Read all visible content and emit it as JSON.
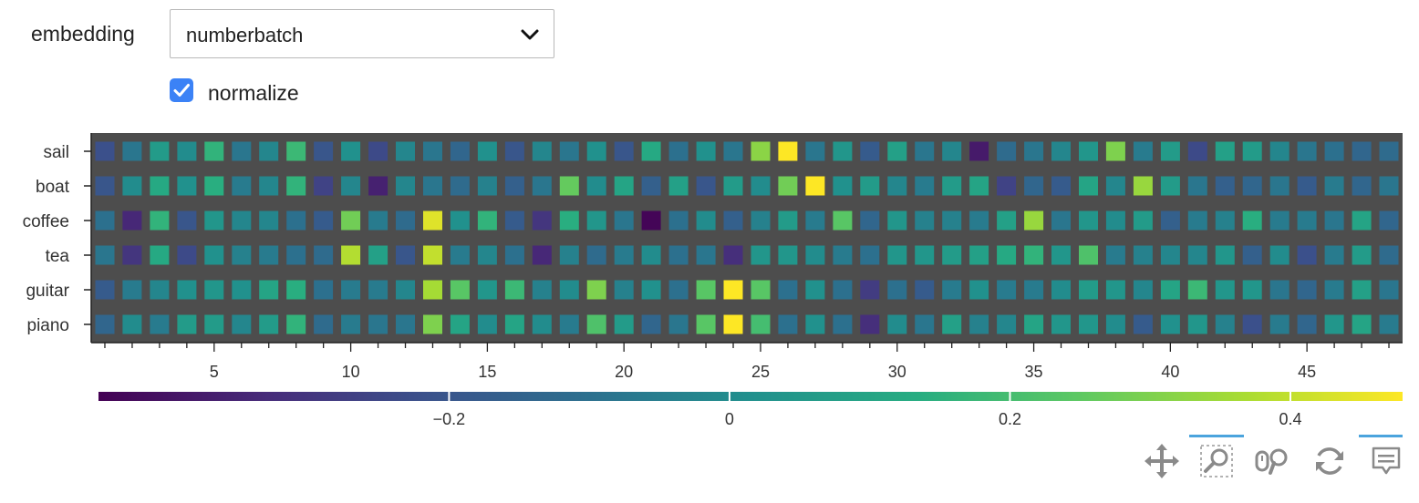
{
  "controls": {
    "embedding_label": "embedding",
    "embedding_value": "numberbatch",
    "normalize_label": "normalize",
    "normalize_checked": true
  },
  "toolbar": {
    "tools": [
      "pan-icon",
      "box-zoom-icon",
      "wheel-zoom-icon",
      "reset-icon",
      "hover-icon"
    ],
    "active": [
      "box-zoom-icon",
      "hover-icon"
    ]
  },
  "chart_data": {
    "type": "heatmap",
    "title": "",
    "xlabel": "",
    "ylabel": "",
    "rows": [
      "sail",
      "boat",
      "coffee",
      "tea",
      "guitar",
      "piano"
    ],
    "x": [
      1,
      2,
      3,
      4,
      5,
      6,
      7,
      8,
      9,
      10,
      11,
      12,
      13,
      14,
      15,
      16,
      17,
      18,
      19,
      20,
      21,
      22,
      23,
      24,
      25,
      26,
      27,
      28,
      29,
      30,
      31,
      32,
      33,
      34,
      35,
      36,
      37,
      38,
      39,
      40,
      41,
      42,
      43,
      44,
      45,
      46,
      47,
      48
    ],
    "xlim": [
      0.5,
      48.5
    ],
    "x_ticks": [
      5,
      10,
      15,
      20,
      25,
      30,
      35,
      40,
      45
    ],
    "values": [
      [
        -0.22,
        -0.08,
        0.06,
        0.0,
        0.16,
        -0.08,
        -0.02,
        0.18,
        -0.2,
        0.02,
        -0.24,
        -0.02,
        -0.08,
        -0.14,
        0.02,
        -0.2,
        -0.02,
        -0.08,
        0.02,
        -0.2,
        0.12,
        -0.1,
        0.02,
        -0.08,
        0.32,
        0.5,
        -0.08,
        0.04,
        -0.18,
        0.08,
        -0.08,
        -0.02,
        -0.38,
        -0.12,
        -0.08,
        -0.02,
        0.04,
        0.3,
        -0.06,
        0.06,
        -0.24,
        0.08,
        0.06,
        -0.02,
        -0.08,
        -0.1,
        -0.14,
        -0.12
      ],
      [
        -0.2,
        0.0,
        0.12,
        0.02,
        0.14,
        -0.06,
        -0.02,
        0.16,
        -0.26,
        -0.02,
        -0.36,
        -0.02,
        -0.08,
        -0.12,
        -0.04,
        -0.16,
        -0.08,
        0.26,
        0.0,
        0.1,
        -0.16,
        0.08,
        -0.2,
        0.06,
        0.0,
        0.28,
        0.48,
        0.02,
        0.06,
        -0.02,
        -0.06,
        0.06,
        0.1,
        -0.26,
        -0.14,
        -0.18,
        0.1,
        -0.02,
        0.34,
        0.06,
        -0.08,
        -0.16,
        -0.14,
        -0.08,
        -0.18,
        -0.06,
        -0.14,
        -0.08
      ],
      [
        -0.1,
        -0.34,
        0.16,
        -0.2,
        0.04,
        -0.02,
        -0.02,
        -0.1,
        -0.18,
        0.28,
        -0.06,
        -0.12,
        0.44,
        0.02,
        0.16,
        -0.18,
        -0.3,
        0.14,
        0.04,
        -0.08,
        -0.44,
        -0.1,
        0.0,
        -0.16,
        -0.04,
        0.06,
        -0.06,
        0.24,
        -0.14,
        0.04,
        -0.04,
        -0.04,
        -0.06,
        0.08,
        0.34,
        -0.08,
        0.04,
        0.0,
        0.06,
        -0.16,
        -0.06,
        -0.04,
        0.14,
        -0.06,
        -0.06,
        -0.08,
        0.1,
        -0.14
      ],
      [
        -0.08,
        -0.3,
        0.12,
        -0.24,
        0.02,
        -0.04,
        -0.06,
        -0.1,
        -0.12,
        0.38,
        0.08,
        -0.2,
        0.4,
        -0.06,
        -0.02,
        -0.1,
        -0.34,
        -0.04,
        -0.12,
        -0.06,
        0.0,
        -0.1,
        -0.08,
        -0.32,
        0.04,
        0.04,
        0.0,
        -0.06,
        -0.1,
        0.04,
        0.04,
        0.06,
        0.08,
        0.12,
        0.16,
        0.04,
        0.22,
        -0.06,
        -0.04,
        -0.02,
        -0.02,
        0.04,
        -0.16,
        0.0,
        -0.22,
        -0.06,
        0.06,
        -0.12
      ],
      [
        -0.18,
        -0.06,
        -0.02,
        0.02,
        0.04,
        0.02,
        0.1,
        0.14,
        -0.1,
        -0.06,
        -0.06,
        -0.02,
        0.36,
        0.24,
        0.04,
        0.18,
        -0.04,
        0.0,
        0.3,
        -0.04,
        0.02,
        -0.1,
        0.24,
        0.5,
        0.24,
        -0.1,
        0.02,
        -0.1,
        -0.28,
        -0.1,
        -0.18,
        -0.06,
        0.02,
        -0.06,
        -0.06,
        0.0,
        0.06,
        0.04,
        -0.02,
        0.1,
        0.18,
        0.04,
        0.04,
        -0.08,
        -0.14,
        -0.06,
        0.08,
        -0.08
      ],
      [
        -0.14,
        0.0,
        -0.06,
        0.06,
        0.06,
        -0.02,
        0.06,
        0.16,
        -0.12,
        -0.06,
        -0.08,
        -0.08,
        0.3,
        0.1,
        0.0,
        0.1,
        0.0,
        -0.06,
        0.22,
        0.06,
        -0.14,
        -0.08,
        0.24,
        0.52,
        0.2,
        -0.1,
        0.02,
        -0.1,
        -0.32,
        0.0,
        -0.08,
        0.08,
        -0.04,
        -0.02,
        0.1,
        0.04,
        0.04,
        0.0,
        -0.18,
        0.02,
        0.04,
        -0.04,
        -0.22,
        -0.06,
        -0.14,
        0.04,
        0.1,
        -0.06
      ]
    ],
    "colorbar": {
      "palette": "viridis",
      "range": [
        -0.45,
        0.48
      ],
      "ticks": [
        -0.2,
        0,
        0.2,
        0.4
      ],
      "tick_labels": [
        "−0.2",
        "0",
        "0.2",
        "0.4"
      ]
    }
  }
}
